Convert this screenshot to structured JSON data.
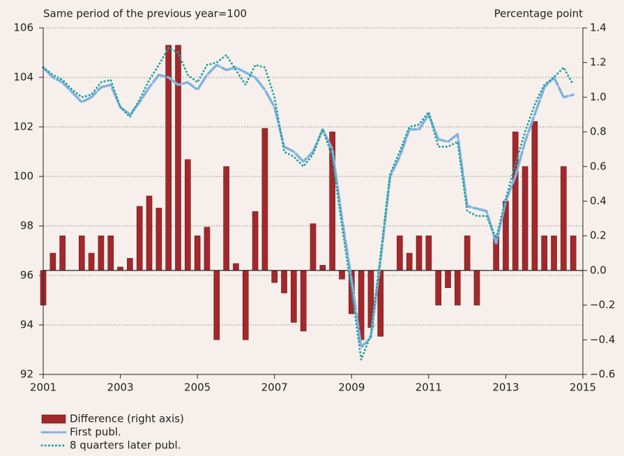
{
  "chart_data": {
    "type": "bar-line",
    "y_label": "Same period of the previous year=100",
    "y2_label": "Percentage point",
    "x": [
      2001,
      2001.25,
      2001.5,
      2001.75,
      2002,
      2002.25,
      2002.5,
      2002.75,
      2003,
      2003.25,
      2003.5,
      2003.75,
      2004,
      2004.25,
      2004.5,
      2004.75,
      2005,
      2005.25,
      2005.5,
      2005.75,
      2006,
      2006.25,
      2006.5,
      2006.75,
      2007,
      2007.25,
      2007.5,
      2007.75,
      2008,
      2008.25,
      2008.5,
      2008.75,
      2009,
      2009.25,
      2009.5,
      2009.75,
      2010,
      2010.25,
      2010.5,
      2010.75,
      2011,
      2011.25,
      2011.5,
      2011.75,
      2012,
      2012.25,
      2012.5,
      2012.75,
      2013,
      2013.25,
      2013.5,
      2013.75,
      2014,
      2014.25,
      2014.5,
      2014.75
    ],
    "series": [
      {
        "name": "Difference (right axis)",
        "type": "bar",
        "axis": "y2",
        "color": "#a3282c",
        "values": [
          -0.2,
          0.1,
          0.2,
          0,
          0.2,
          0.1,
          0.2,
          0.2,
          0.02,
          0.07,
          0.37,
          0.43,
          0.36,
          1.3,
          1.3,
          0.64,
          0.2,
          0.25,
          -0.4,
          0.6,
          0.04,
          -0.4,
          0.34,
          0.82,
          -0.07,
          -0.13,
          -0.3,
          -0.35,
          0.27,
          0.03,
          0.8,
          -0.05,
          -0.25,
          -0.4,
          -0.33,
          -0.38,
          0,
          0.2,
          0.1,
          0.2,
          0.2,
          -0.2,
          -0.1,
          -0.2,
          0.2,
          -0.2,
          0,
          0.2,
          0.4,
          0.8,
          0.6,
          0.86,
          0.2,
          0.2,
          0.6,
          0.2
        ]
      },
      {
        "name": "First publ.",
        "type": "line",
        "style": "dashed",
        "color": "#7fb2de",
        "values": [
          104.4,
          104.0,
          103.8,
          103.4,
          103.0,
          103.2,
          103.6,
          103.7,
          102.8,
          102.5,
          103.0,
          103.6,
          104.1,
          104.0,
          103.7,
          103.8,
          103.5,
          104.1,
          104.5,
          104.3,
          104.4,
          104.2,
          104.0,
          103.5,
          102.8,
          101.2,
          101.0,
          100.6,
          101.0,
          101.9,
          101.1,
          98.3,
          95.8,
          93.1,
          93.5,
          96.6,
          100.0,
          100.8,
          101.9,
          101.9,
          102.5,
          101.5,
          101.4,
          101.7,
          98.8,
          98.7,
          98.6,
          97.3,
          99.0,
          100.0,
          101.4,
          102.5,
          103.6,
          104.0,
          103.2,
          103.3
        ]
      },
      {
        "name": "8 quarters later publ.",
        "type": "line",
        "style": "dotted",
        "color": "#1fa39a",
        "values": [
          104.4,
          104.1,
          103.9,
          103.5,
          103.2,
          103.3,
          103.8,
          103.9,
          102.8,
          102.4,
          103.1,
          103.9,
          104.5,
          105.2,
          105.0,
          104.1,
          103.8,
          104.5,
          104.6,
          104.9,
          104.3,
          103.7,
          104.5,
          104.4,
          103.2,
          101.0,
          100.8,
          100.4,
          100.9,
          101.9,
          100.8,
          98.0,
          95.4,
          92.6,
          93.6,
          96.8,
          100.1,
          101.0,
          102.0,
          102.1,
          102.6,
          101.2,
          101.2,
          101.4,
          98.6,
          98.4,
          98.4,
          97.5,
          99.1,
          100.5,
          101.8,
          102.9,
          103.7,
          104.0,
          104.4,
          103.7
        ]
      }
    ],
    "xlim": [
      2001,
      2015
    ],
    "xticks": [
      2001,
      2003,
      2005,
      2007,
      2009,
      2011,
      2013,
      2015
    ],
    "ylim": [
      92,
      106
    ],
    "yticks": [
      92,
      94,
      96,
      98,
      100,
      102,
      104,
      106
    ],
    "y2lim": [
      -0.6,
      1.4
    ],
    "y2ticks": [
      {
        "value": -0.6,
        "label": "−0.6"
      },
      {
        "value": -0.4,
        "label": "−0.4"
      },
      {
        "value": -0.2,
        "label": "−0.2"
      },
      {
        "value": 0,
        "label": "0.0"
      },
      {
        "value": 0.2,
        "label": "0.2"
      },
      {
        "value": 0.4,
        "label": "0.4"
      },
      {
        "value": 0.6,
        "label": "0.6"
      },
      {
        "value": 0.8,
        "label": "0.8"
      },
      {
        "value": 1.0,
        "label": "1.0"
      },
      {
        "value": 1.2,
        "label": "1.2"
      },
      {
        "value": 1.4,
        "label": "1.4"
      }
    ],
    "grid": true,
    "legend": "bottom-left"
  }
}
